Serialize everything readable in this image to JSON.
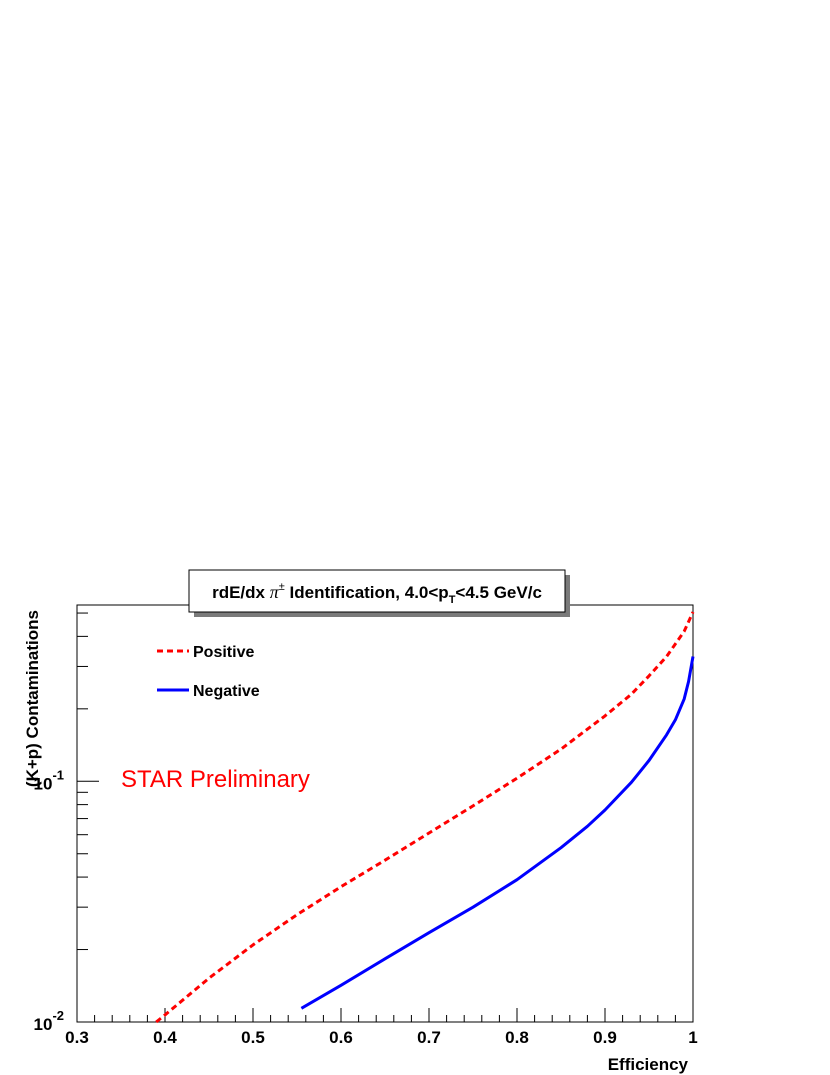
{
  "chart_data": {
    "type": "line",
    "title": {
      "prefix": "rdE/dx ",
      "pi": "π",
      "pm": "±",
      "mid": " Identification, 4.0<p",
      "sub": "T",
      "suffix": "<4.5 GeV/c"
    },
    "xlabel": "Efficiency",
    "ylabel": "(K+p) Contaminations",
    "xlim": [
      0.3,
      1.0
    ],
    "ylim": [
      0.01,
      0.54
    ],
    "yscale": "log",
    "x_ticks": [
      "0.3",
      "0.4",
      "0.5",
      "0.6",
      "0.7",
      "0.8",
      "0.9",
      "1"
    ],
    "y_ticks": [
      {
        "value": 0.1,
        "base": "10",
        "exp": "-1"
      },
      {
        "value": 0.01,
        "base": "10",
        "exp": "-2"
      }
    ],
    "legend_position": "top-left",
    "grid": false,
    "annotation": {
      "text": "STAR Preliminary",
      "color": "#ff0000"
    },
    "series": [
      {
        "name": "Positive",
        "color": "#ff0000",
        "style": "dashed",
        "x": [
          0.39,
          0.4,
          0.45,
          0.5,
          0.55,
          0.6,
          0.65,
          0.7,
          0.75,
          0.8,
          0.85,
          0.9,
          0.93,
          0.95,
          0.97,
          0.99,
          1.0
        ],
        "y": [
          0.0098,
          0.0107,
          0.0152,
          0.0209,
          0.0279,
          0.0365,
          0.047,
          0.061,
          0.079,
          0.103,
          0.136,
          0.187,
          0.23,
          0.274,
          0.33,
          0.42,
          0.505
        ]
      },
      {
        "name": "Negative",
        "color": "#0000ff",
        "style": "solid",
        "x": [
          0.555,
          0.6,
          0.65,
          0.7,
          0.75,
          0.8,
          0.85,
          0.88,
          0.9,
          0.93,
          0.95,
          0.97,
          0.98,
          0.99,
          0.995,
          1.0
        ],
        "y": [
          0.0114,
          0.0142,
          0.0183,
          0.0235,
          0.03,
          0.039,
          0.053,
          0.065,
          0.076,
          0.099,
          0.122,
          0.156,
          0.18,
          0.22,
          0.26,
          0.33
        ]
      }
    ]
  }
}
